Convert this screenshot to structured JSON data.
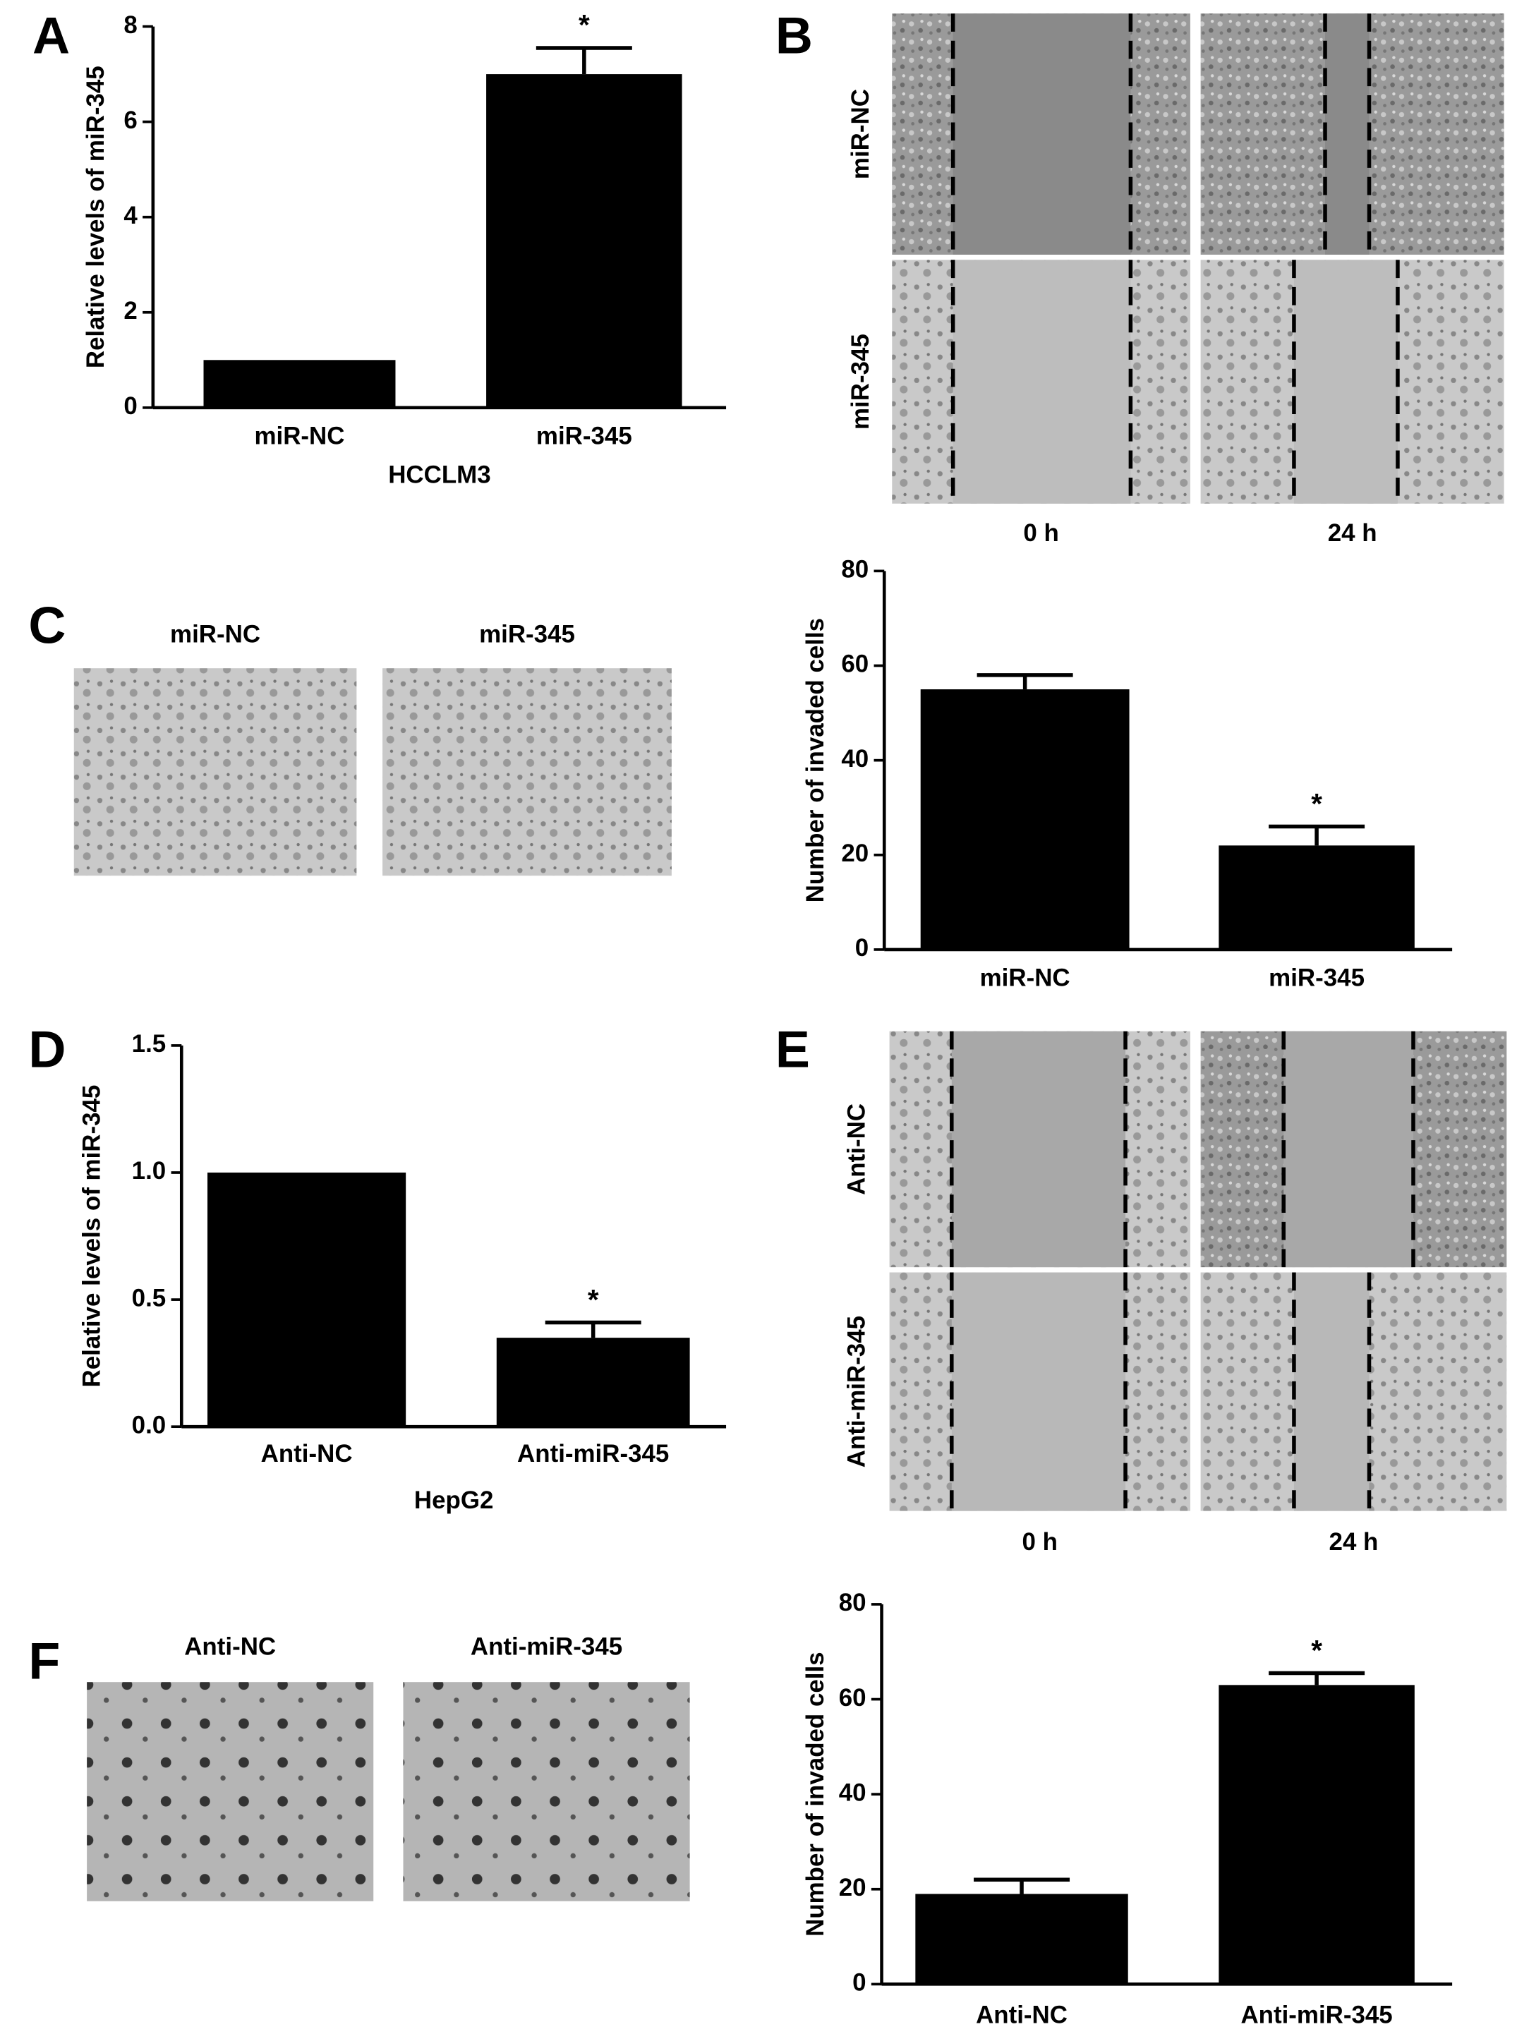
{
  "chart_data": [
    {
      "type": "bar",
      "panel": "A",
      "ylabel": "Relative levels of miR-345",
      "xlabel": "HCCLM3",
      "categories": [
        "miR-NC",
        "miR-345"
      ],
      "values": [
        1.0,
        7.0
      ],
      "errors": [
        null,
        0.55
      ],
      "significance": [
        null,
        "*"
      ],
      "color": "#000000",
      "ylim": [
        0,
        8
      ],
      "yticks": [
        0,
        2,
        4,
        6,
        8
      ]
    },
    {
      "type": "bar",
      "ylabel": "Number of invaded cells",
      "categories": [
        "miR-NC",
        "miR-345"
      ],
      "values": [
        55,
        22
      ],
      "errors": [
        3,
        4
      ],
      "significance": [
        null,
        "*"
      ],
      "color": "#000000",
      "ylim": [
        0,
        80
      ],
      "yticks": [
        0,
        20,
        40,
        60,
        80
      ]
    },
    {
      "type": "bar",
      "panel": "D",
      "ylabel": "Relative levels of miR-345",
      "xlabel": "HepG2",
      "categories": [
        "Anti-NC",
        "Anti-miR-345"
      ],
      "values": [
        1.0,
        0.35
      ],
      "errors": [
        null,
        0.06
      ],
      "significance": [
        null,
        "*"
      ],
      "color": "#000000",
      "ylim": [
        0,
        1.5
      ],
      "yticks": [
        {
          "value": 0,
          "label": "0.0"
        },
        0.5,
        {
          "value": 1,
          "label": "1.0"
        },
        1.5
      ]
    },
    {
      "type": "bar",
      "ylabel": "Number of invaded cells",
      "categories": [
        "Anti-NC",
        "Anti-miR-345"
      ],
      "values": [
        19,
        63
      ],
      "errors": [
        3,
        2.5
      ],
      "significance": [
        null,
        "*"
      ],
      "color": "#000000",
      "ylim": [
        0,
        80
      ],
      "yticks": [
        0,
        20,
        40,
        60,
        80
      ]
    }
  ],
  "image_panels": [
    {
      "panel": "B",
      "row_labels": [
        "miR-NC",
        "miR-345"
      ],
      "col_labels": [
        "0 h",
        "24 h"
      ]
    },
    {
      "panel": "C",
      "col_labels": [
        "miR-NC",
        "miR-345"
      ]
    },
    {
      "panel": "E",
      "row_labels": [
        "Anti-NC",
        "Anti-miR-345"
      ],
      "col_labels": [
        "0 h",
        "24 h"
      ]
    },
    {
      "panel": "F",
      "col_labels": [
        "Anti-NC",
        "Anti-miR-345"
      ]
    }
  ]
}
